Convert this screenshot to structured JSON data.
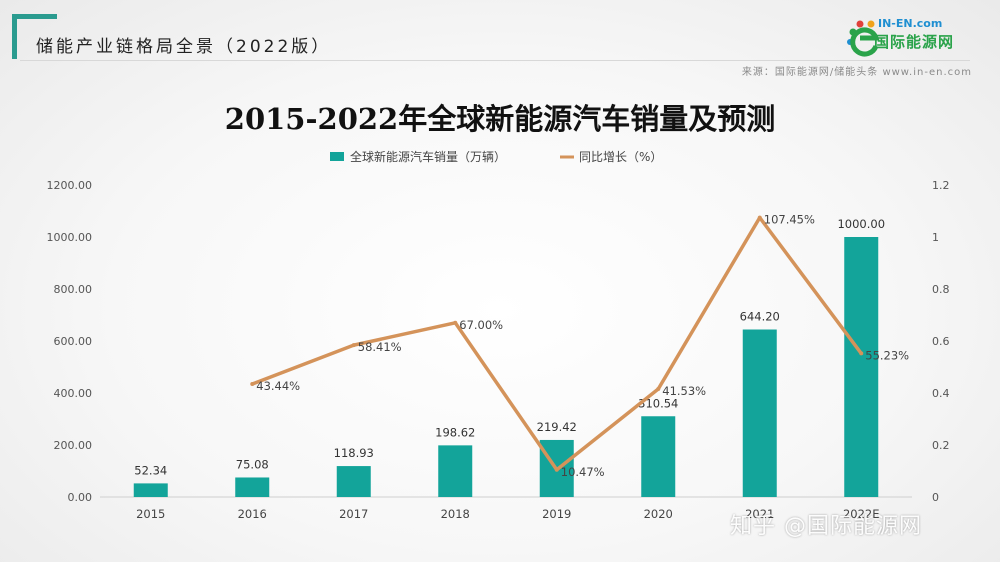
{
  "header": {
    "title": "储能产业链格局全景（2022版）",
    "source": "来源：国际能源网/储能头条 www.in-en.com"
  },
  "logo": {
    "top_text": "IN-EN.com",
    "cn_text": "国际能源网",
    "colors": {
      "blue": "#1f8fd1",
      "green": "#2aa34a",
      "orange": "#f0a31c",
      "red": "#e0403a"
    }
  },
  "watermark": "知乎 @国际能源网",
  "chart_data": {
    "type": "bar",
    "title": "2015-2022年全球新能源汽车销量及预测",
    "categories": [
      "2015",
      "2016",
      "2017",
      "2018",
      "2019",
      "2020",
      "2021",
      "2022E"
    ],
    "series": [
      {
        "name": "全球新能源汽车销量（万辆）",
        "type": "bar",
        "axis": "left",
        "color": "#13a49a",
        "values": [
          52.34,
          75.08,
          118.93,
          198.62,
          219.42,
          310.54,
          644.2,
          1000.0
        ],
        "labels": [
          "52.34",
          "75.08",
          "118.93",
          "198.62",
          "219.42",
          "310.54",
          "644.20",
          "1000.00"
        ]
      },
      {
        "name": "同比增长（%）",
        "type": "line",
        "axis": "right",
        "color": "#d4935a",
        "values": [
          null,
          0.4344,
          0.5841,
          0.67,
          0.1047,
          0.4153,
          1.0745,
          0.5523
        ],
        "labels": [
          "",
          "43.44%",
          "58.41%",
          "67.00%",
          "10.47%",
          "41.53%",
          "107.45%",
          "55.23%"
        ]
      }
    ],
    "y_left": {
      "min": 0,
      "max": 1200,
      "ticks": [
        "0.00",
        "200.00",
        "400.00",
        "600.00",
        "800.00",
        "1000.00",
        "1200.00"
      ]
    },
    "y_right": {
      "min": 0,
      "max": 1.2,
      "ticks": [
        "0",
        "0.2",
        "0.4",
        "0.6",
        "0.8",
        "1",
        "1.2"
      ]
    },
    "grid": false,
    "legend_position": "top"
  }
}
